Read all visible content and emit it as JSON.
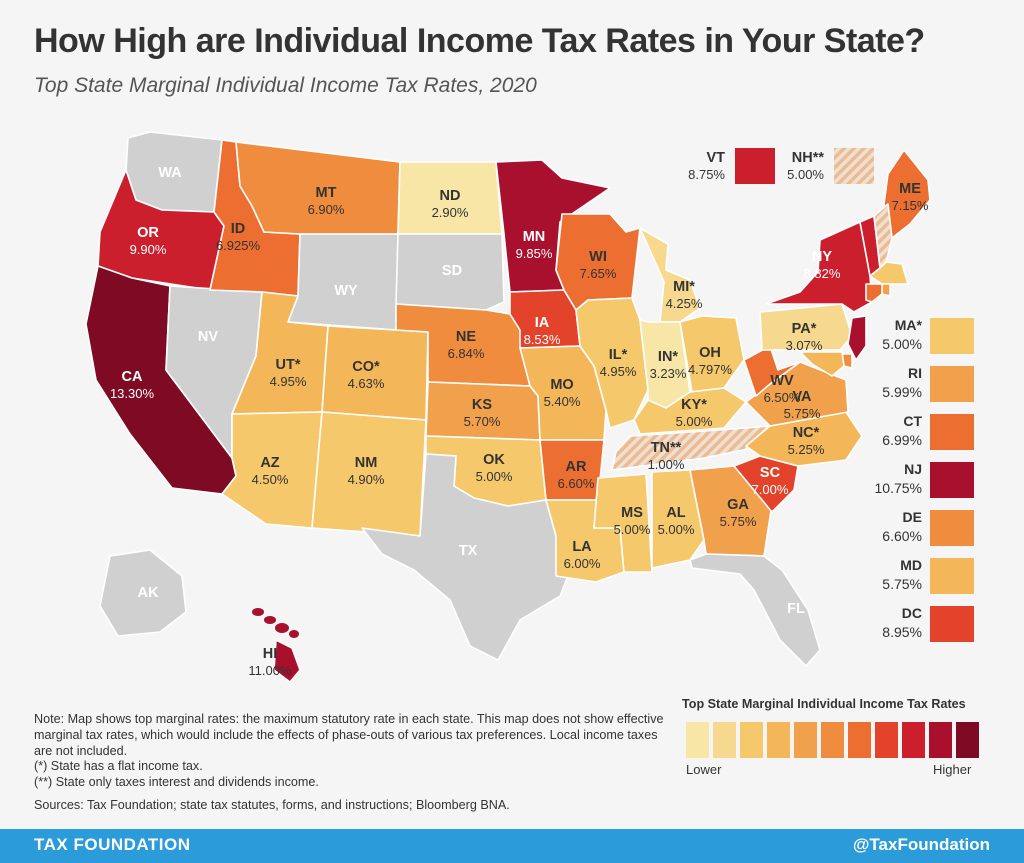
{
  "title": "How High are Individual Income Tax Rates in Your State?",
  "subtitle": "Top State Marginal Individual Income Tax Rates, 2020",
  "colors": {
    "none": "#d0d0d0",
    "scale": [
      "#f7e6a6",
      "#f6d98e",
      "#f5c86b",
      "#f3b75a",
      "#f1a14b",
      "#ef8c3e",
      "#ec6f31",
      "#e3432a",
      "#cc1f2e",
      "#a8102e",
      "#7f0a24"
    ]
  },
  "states": {
    "WA": {
      "abbr": "WA",
      "rate": ""
    },
    "OR": {
      "abbr": "OR",
      "rate": "9.90%"
    },
    "CA": {
      "abbr": "CA",
      "rate": "13.30%"
    },
    "NV": {
      "abbr": "NV",
      "rate": ""
    },
    "ID": {
      "abbr": "ID",
      "rate": "6.925%"
    },
    "MT": {
      "abbr": "MT",
      "rate": "6.90%"
    },
    "WY": {
      "abbr": "WY",
      "rate": ""
    },
    "UT": {
      "abbr": "UT*",
      "rate": "4.95%"
    },
    "AZ": {
      "abbr": "AZ",
      "rate": "4.50%"
    },
    "CO": {
      "abbr": "CO*",
      "rate": "4.63%"
    },
    "NM": {
      "abbr": "NM",
      "rate": "4.90%"
    },
    "ND": {
      "abbr": "ND",
      "rate": "2.90%"
    },
    "SD": {
      "abbr": "SD",
      "rate": ""
    },
    "NE": {
      "abbr": "NE",
      "rate": "6.84%"
    },
    "KS": {
      "abbr": "KS",
      "rate": "5.70%"
    },
    "OK": {
      "abbr": "OK",
      "rate": "5.00%"
    },
    "TX": {
      "abbr": "TX",
      "rate": ""
    },
    "MN": {
      "abbr": "MN",
      "rate": "9.85%"
    },
    "IA": {
      "abbr": "IA",
      "rate": "8.53%"
    },
    "MO": {
      "abbr": "MO",
      "rate": "5.40%"
    },
    "AR": {
      "abbr": "AR",
      "rate": "6.60%"
    },
    "LA": {
      "abbr": "LA",
      "rate": "6.00%"
    },
    "WI": {
      "abbr": "WI",
      "rate": "7.65%"
    },
    "IL": {
      "abbr": "IL*",
      "rate": "4.95%"
    },
    "MI": {
      "abbr": "MI*",
      "rate": "4.25%"
    },
    "IN": {
      "abbr": "IN*",
      "rate": "3.23%"
    },
    "OH": {
      "abbr": "OH",
      "rate": "4.797%"
    },
    "KY": {
      "abbr": "KY*",
      "rate": "5.00%"
    },
    "TN": {
      "abbr": "TN**",
      "rate": "1.00%"
    },
    "MS": {
      "abbr": "MS",
      "rate": "5.00%"
    },
    "AL": {
      "abbr": "AL",
      "rate": "5.00%"
    },
    "GA": {
      "abbr": "GA",
      "rate": "5.75%"
    },
    "FL": {
      "abbr": "FL",
      "rate": ""
    },
    "SC": {
      "abbr": "SC",
      "rate": "7.00%"
    },
    "NC": {
      "abbr": "NC*",
      "rate": "5.25%"
    },
    "VA": {
      "abbr": "VA",
      "rate": "5.75%"
    },
    "WV": {
      "abbr": "WV",
      "rate": "6.50%"
    },
    "PA": {
      "abbr": "PA*",
      "rate": "3.07%"
    },
    "NY": {
      "abbr": "NY",
      "rate": "8.82%"
    },
    "ME": {
      "abbr": "ME",
      "rate": "7.15%"
    },
    "AK": {
      "abbr": "AK",
      "rate": ""
    },
    "HI": {
      "abbr": "HI",
      "rate": "11.00%"
    }
  },
  "callouts": {
    "VT": {
      "abbr": "VT",
      "rate": "8.75%"
    },
    "NH": {
      "abbr": "NH**",
      "rate": "5.00%"
    }
  },
  "sidebar": [
    {
      "abbr": "MA*",
      "rate": "5.00%"
    },
    {
      "abbr": "RI",
      "rate": "5.99%"
    },
    {
      "abbr": "CT",
      "rate": "6.99%"
    },
    {
      "abbr": "NJ",
      "rate": "10.75%"
    },
    {
      "abbr": "DE",
      "rate": "6.60%"
    },
    {
      "abbr": "MD",
      "rate": "5.75%"
    },
    {
      "abbr": "DC",
      "rate": "8.95%"
    }
  ],
  "notes": [
    "Note: Map shows top marginal rates: the maximum statutory rate in each state. This map does not show effective marginal tax rates, which would include the effects of phase-outs of various tax preferences. Local income taxes are not included.",
    "(*) State has a flat income tax.",
    "(**) State only taxes interest and dividends income."
  ],
  "sources": "Sources: Tax Foundation; state tax statutes, forms, and instructions; Bloomberg BNA.",
  "legend": {
    "title": "Top State Marginal Individual Income Tax Rates",
    "lower": "Lower",
    "higher": "Higher"
  },
  "footer": {
    "left": "TAX FOUNDATION",
    "right": "@TaxFoundation"
  }
}
